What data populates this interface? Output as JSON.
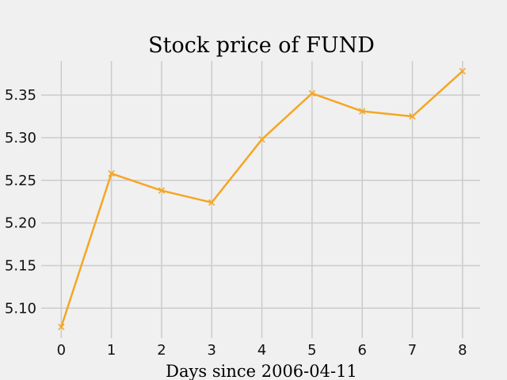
{
  "chart_data": {
    "type": "line",
    "title": "Stock price of FUND",
    "xlabel": "Days since 2006-04-11",
    "ylabel": "",
    "x": [
      0,
      1,
      2,
      3,
      4,
      5,
      6,
      7,
      8
    ],
    "series": [
      {
        "values": [
          5.078,
          5.258,
          5.238,
          5.224,
          5.298,
          5.352,
          5.331,
          5.325,
          5.378
        ],
        "color": "#f5a623",
        "marker": "x"
      }
    ],
    "xticks": [
      "0",
      "1",
      "2",
      "3",
      "4",
      "5",
      "6",
      "7",
      "8"
    ],
    "yticks": [
      "5.10",
      "5.15",
      "5.20",
      "5.25",
      "5.30",
      "5.35"
    ],
    "xlim": [
      -0.4,
      8.35
    ],
    "ylim": [
      5.065,
      5.39
    ],
    "grid": true,
    "legend": "none"
  }
}
